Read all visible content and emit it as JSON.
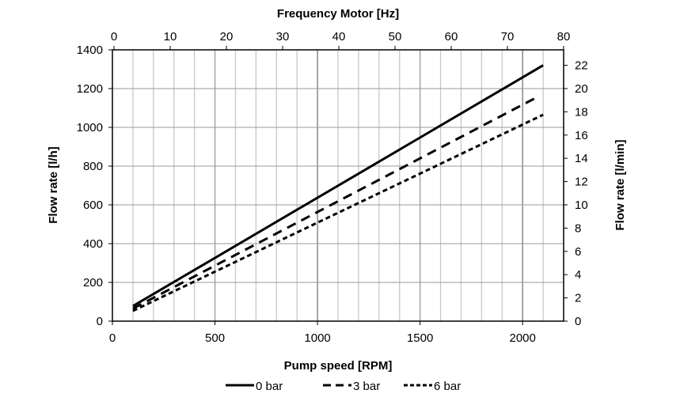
{
  "chart_data": {
    "type": "line",
    "xlabel": "Pump speed [RPM]",
    "ylabel": "Flow rate [l/h]",
    "x2label": "Frequency Motor [Hz]",
    "y2label": "Flow rate [l/min]",
    "xlim": [
      0,
      2200
    ],
    "ylim": [
      0,
      1400
    ],
    "x2lim": [
      0,
      80
    ],
    "y2lim": [
      0,
      23.33
    ],
    "xticks": [
      0,
      500,
      1000,
      1500,
      2000
    ],
    "yticks": [
      0,
      200,
      400,
      600,
      800,
      1000,
      1200,
      1400
    ],
    "x2ticks": [
      0,
      10,
      20,
      30,
      40,
      50,
      60,
      70,
      80
    ],
    "y2ticks": [
      0,
      2,
      4,
      6,
      8,
      10,
      12,
      14,
      16,
      18,
      20,
      22
    ],
    "grid": true,
    "legend_position": "bottom",
    "series": [
      {
        "name": "0 bar",
        "style": "solid",
        "x": [
          100,
          2100
        ],
        "y": [
          78,
          1320
        ]
      },
      {
        "name": "3 bar",
        "style": "dashed",
        "x": [
          100,
          2060
        ],
        "y": [
          65,
          1150
        ]
      },
      {
        "name": "6 bar",
        "style": "dotted-dash",
        "x": [
          100,
          2100
        ],
        "y": [
          53,
          1065
        ]
      }
    ]
  }
}
